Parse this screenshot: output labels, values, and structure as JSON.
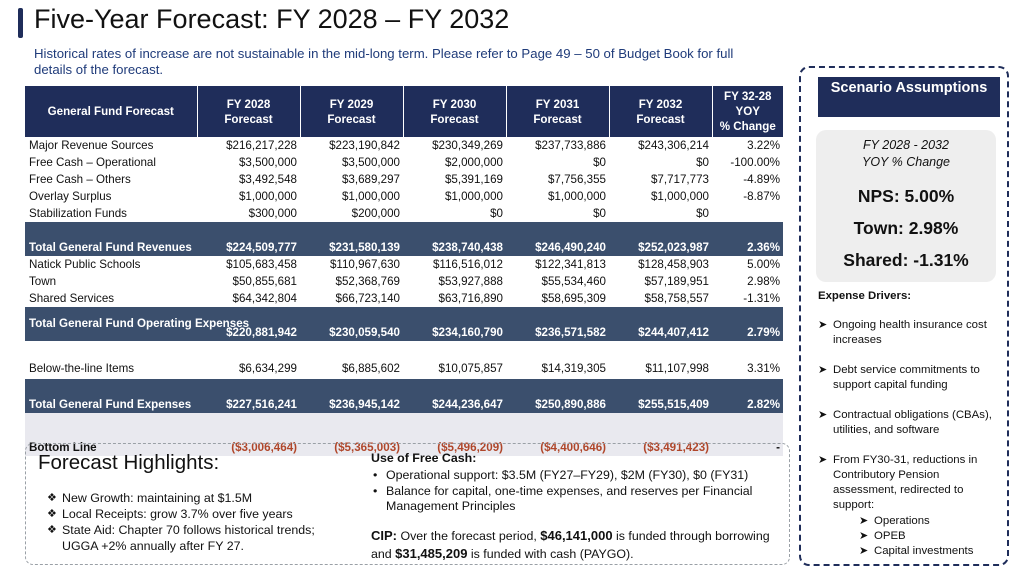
{
  "title": "Five-Year Forecast: FY 2028 – FY 2032",
  "subtitle": "Historical rates of increase are not sustainable in the mid-long term. Please refer to Page 49 – 50 of Budget Book for full details of the forecast.",
  "table": {
    "headers": [
      "General Fund Forecast",
      "FY 2028\nForecast",
      "FY 2029\nForecast",
      "FY 2030\nForecast",
      "FY 2031\nForecast",
      "FY 2032\nForecast",
      "FY 32-28\nYOY\n% Change"
    ],
    "rows": [
      {
        "label": "Major Revenue Sources",
        "values": [
          "$216,217,228",
          "$223,190,842",
          "$230,349,269",
          "$237,733,886",
          "$243,306,214",
          "3.22%"
        ]
      },
      {
        "label": "Free Cash – Operational",
        "values": [
          "$3,500,000",
          "$3,500,000",
          "$2,000,000",
          "$0",
          "$0",
          "-100.00%"
        ]
      },
      {
        "label": "Free Cash – Others",
        "values": [
          "$3,492,548",
          "$3,689,297",
          "$5,391,169",
          "$7,756,355",
          "$7,717,773",
          "-4.89%"
        ]
      },
      {
        "label": "Overlay Surplus",
        "values": [
          "$1,000,000",
          "$1,000,000",
          "$1,000,000",
          "$1,000,000",
          "$1,000,000",
          "-8.87%"
        ]
      },
      {
        "label": "Stabilization Funds",
        "values": [
          "$300,000",
          "$200,000",
          "$0",
          "$0",
          "$0",
          ""
        ]
      },
      {
        "label": "Total General Fund  Revenues",
        "values": [
          "$224,509,777",
          "$231,580,139",
          "$238,740,438",
          "$246,490,240",
          "$252,023,987",
          "2.36%"
        ]
      },
      {
        "label": "Natick Public Schools",
        "values": [
          "$105,683,458",
          "$110,967,630",
          "$116,516,012",
          "$122,341,813",
          "$128,458,903",
          "5.00%"
        ]
      },
      {
        "label": "Town",
        "values": [
          "$50,855,681",
          "$52,368,769",
          "$53,927,888",
          "$55,534,460",
          "$57,189,951",
          "2.98%"
        ]
      },
      {
        "label": "Shared Services",
        "values": [
          "$64,342,804",
          "$66,723,140",
          "$63,716,890",
          "$58,695,309",
          "$58,758,557",
          "-1.31%"
        ]
      },
      {
        "label": "Total General Fund Operating Expenses",
        "values": [
          "$220,881,942",
          "$230,059,540",
          "$234,160,790",
          "$236,571,582",
          "$244,407,412",
          "2.79%"
        ]
      },
      {
        "label": "Below-the-line Items",
        "values": [
          "$6,634,299",
          "$6,885,602",
          "$10,075,857",
          "$14,319,305",
          "$11,107,998",
          "3.31%"
        ]
      },
      {
        "label": "Total General Fund Expenses",
        "values": [
          "$227,516,241",
          "$236,945,142",
          "$244,236,647",
          "$250,890,886",
          "$255,515,409",
          "2.82%"
        ]
      },
      {
        "label": "Bottom Line",
        "values": [
          "($3,006,464)",
          "($5,365,003)",
          "($5,496,209)",
          "($4,400,646)",
          "($3,491,423)",
          "-"
        ]
      }
    ]
  },
  "scenario": {
    "title": "Scenario Assumptions",
    "yoy_header": "FY 2028 - 2032\nYOY % Change",
    "nps": "NPS: 5.00%",
    "town": "Town: 2.98%",
    "shared": "Shared: -1.31%",
    "drivers_title": "Expense Drivers:",
    "drivers": [
      "Ongoing health insurance cost increases",
      "Debt service commitments to support capital funding",
      "Contractual obligations (CBAs), utilities, and software",
      "From FY30-31, reductions in Contributory Pension assessment, redirected to support:"
    ],
    "sub_drivers": [
      "Operations",
      "OPEB",
      "Capital investments"
    ]
  },
  "highlights": {
    "title": "Forecast Highlights:",
    "items": [
      "New Growth: maintaining at $1.5M",
      "Local Receipts: grow 3.7% over five years",
      "State Aid: Chapter 70 follows historical trends; UGGA +2% annually after FY 27."
    ],
    "free_cash_title": "Use of Free Cash:",
    "free_cash_items": [
      "Operational support: $3.5M (FY27–FY29), $2M (FY30), $0 (FY31)",
      "Balance for capital, one-time expenses, and reserves per Financial Management Principles"
    ],
    "cip_label": "CIP:",
    "cip_text1": " Over the forecast period, ",
    "cip_amount1": "$46,141,000",
    "cip_text2": " is funded through borrowing and ",
    "cip_amount2": "$31,485,209",
    "cip_text3": " is funded with cash (PAYGO)."
  }
}
